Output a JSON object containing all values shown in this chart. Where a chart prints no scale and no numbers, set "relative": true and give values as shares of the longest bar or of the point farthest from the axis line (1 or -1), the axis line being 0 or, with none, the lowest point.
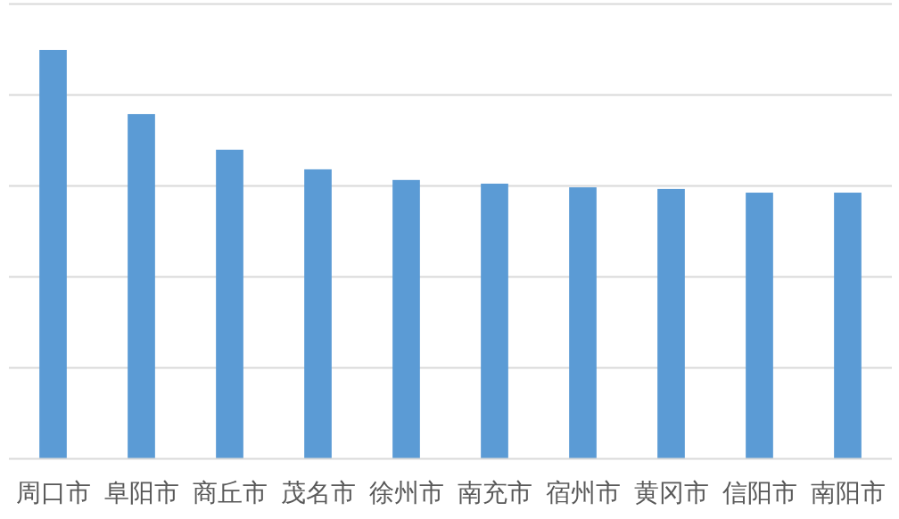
{
  "chart_data": {
    "type": "bar",
    "relative": true,
    "grid": "y",
    "categories": [
      "周口市",
      "阜阳市",
      "商丘市",
      "茂名市",
      "徐州市",
      "南充市",
      "宿州市",
      "黄冈市",
      "信阳市",
      "南阳市"
    ],
    "values": [
      1,
      0.843,
      0.756,
      0.708,
      0.682,
      0.673,
      0.664,
      0.66,
      0.651,
      0.651
    ],
    "color": "#5b9bd5"
  }
}
